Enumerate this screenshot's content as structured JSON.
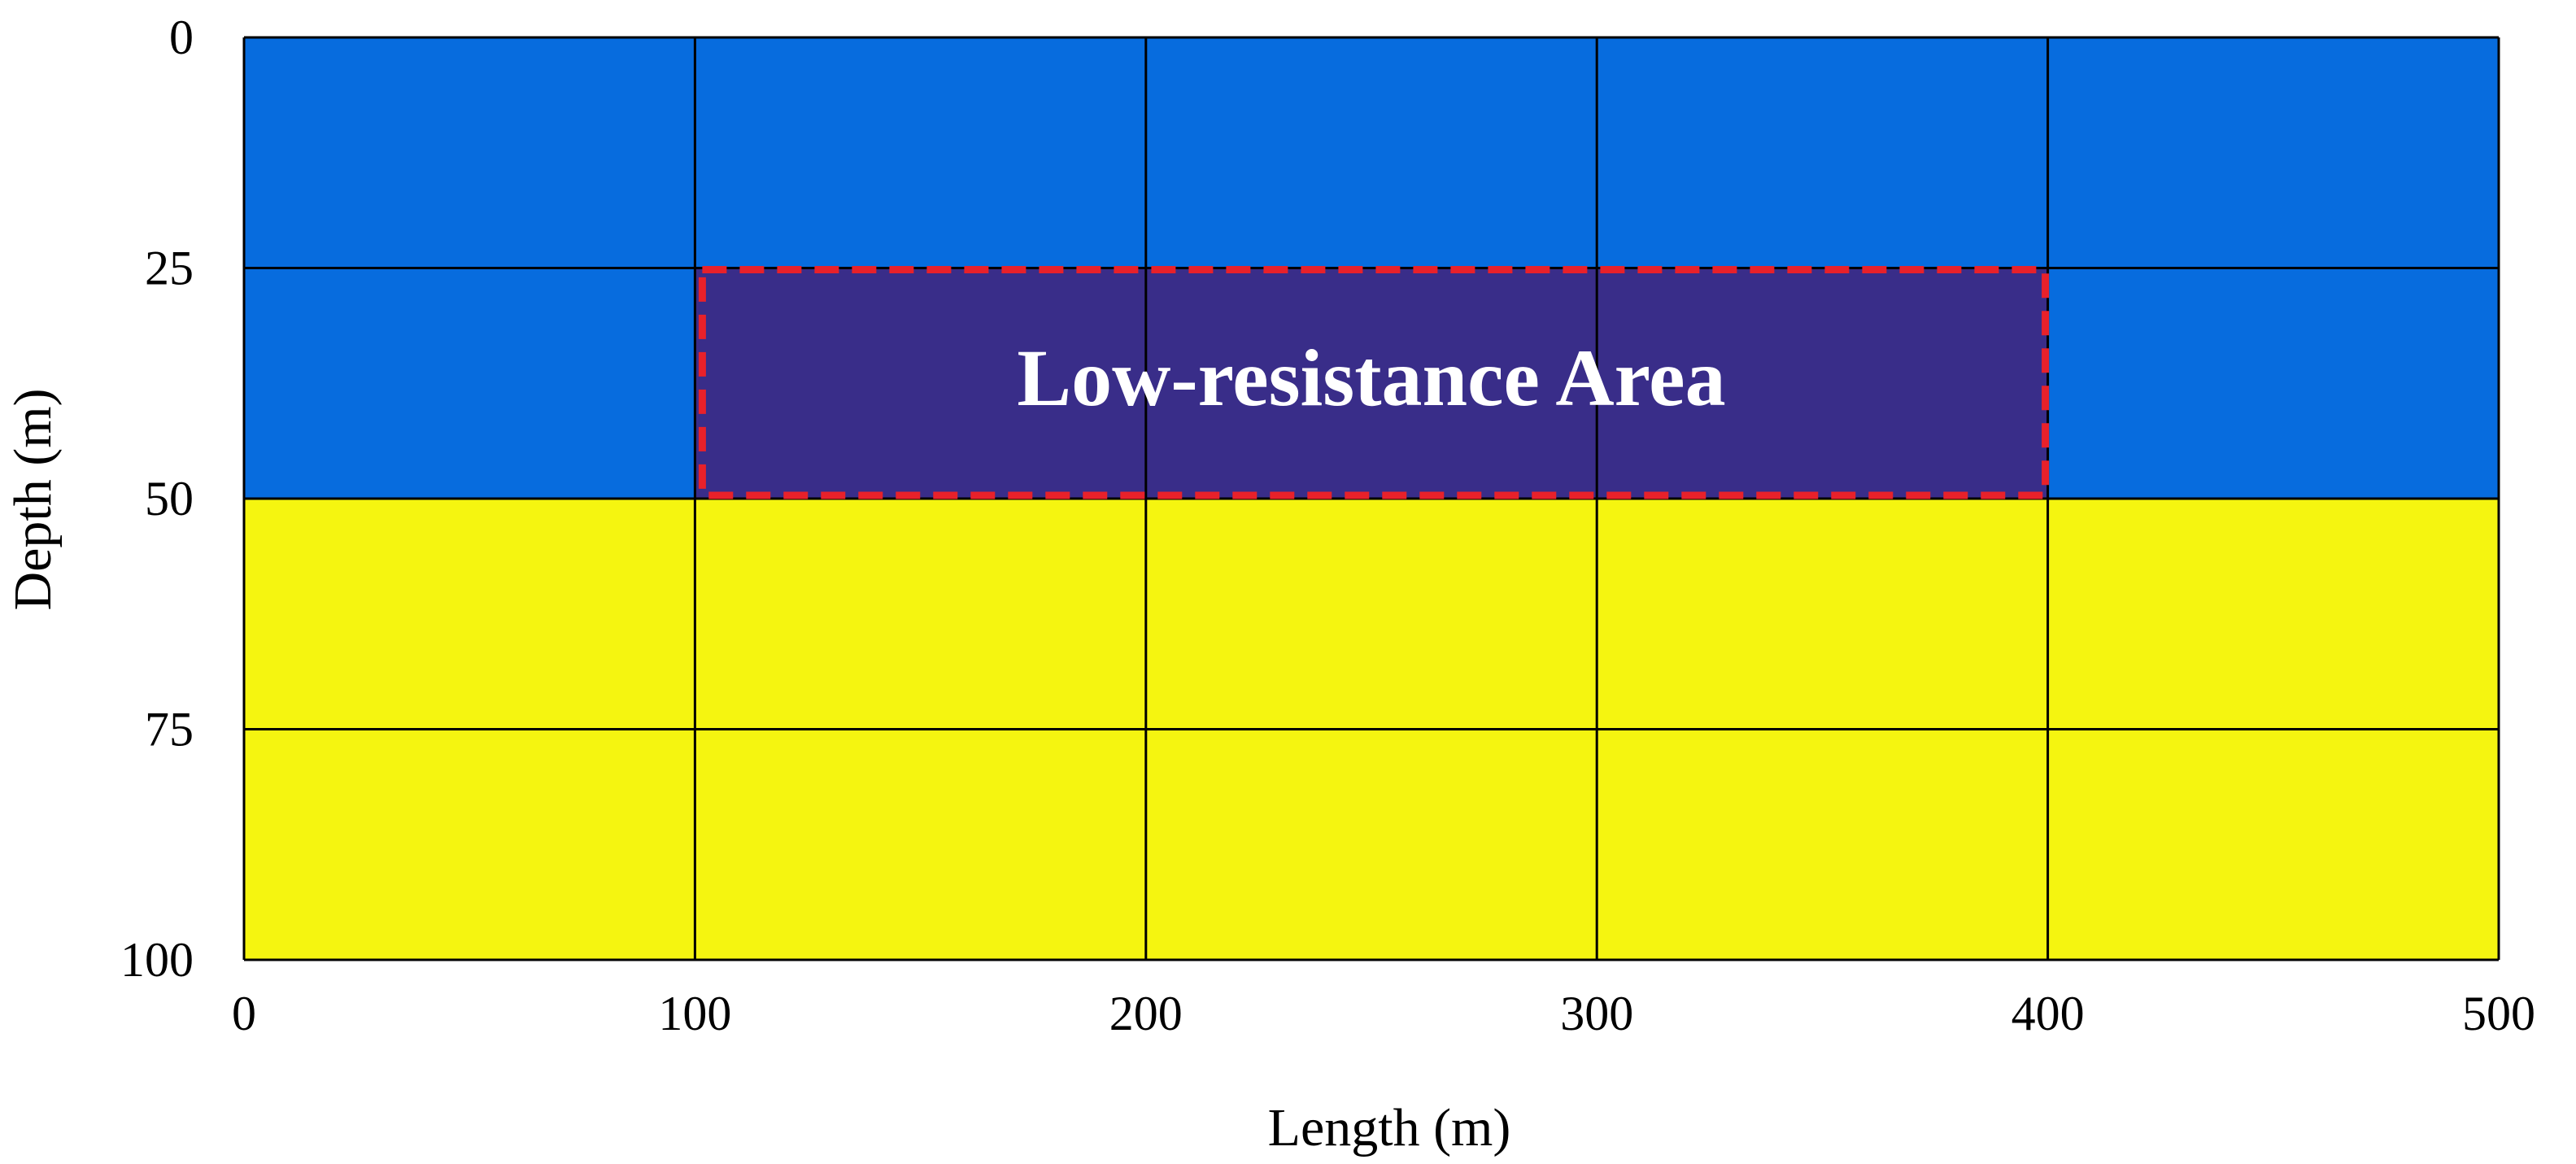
{
  "chart_data": {
    "type": "heatmap",
    "xlabel": "Length (m)",
    "ylabel": "Depth (m)",
    "xlim": [
      0,
      500
    ],
    "ylim": [
      0,
      100
    ],
    "y_inverted": true,
    "x_ticks": [
      "0",
      "100",
      "200",
      "300",
      "400",
      "500"
    ],
    "y_ticks": [
      "0",
      "25",
      "50",
      "75",
      "100"
    ],
    "x_tick_values": [
      0,
      100,
      200,
      300,
      400,
      500
    ],
    "y_tick_values": [
      0,
      25,
      50,
      75,
      100
    ],
    "grid": true,
    "layers": [
      {
        "depth_top": 0,
        "depth_bottom": 50,
        "color": "#076CDE"
      },
      {
        "depth_top": 50,
        "depth_bottom": 100,
        "color": "#F5F510"
      }
    ],
    "anomaly": {
      "label": "Low-resistance Area",
      "x_start": 100,
      "x_end": 400,
      "depth_top": 25,
      "depth_bottom": 50,
      "fill_color": "#392D89",
      "border_color": "#E8212A"
    }
  }
}
